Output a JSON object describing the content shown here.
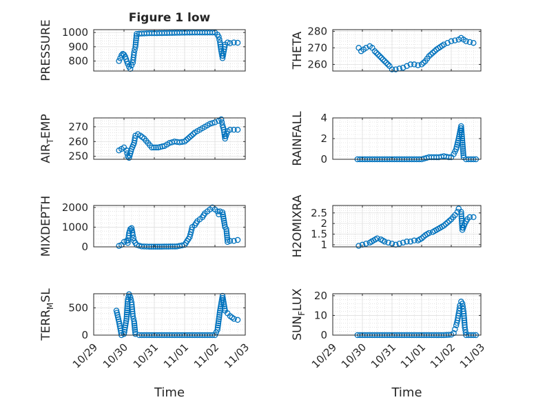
{
  "chart_data": [
    {
      "type": "scatter",
      "title": "Figure 1 low",
      "ylabel": "PRESSURE",
      "xlabel": "",
      "x_range": [
        "10/29",
        "11/03"
      ],
      "ylim": [
        730,
        1020
      ],
      "yticks": [
        800,
        900,
        1000
      ],
      "ytick_labels": [
        "800",
        "900",
        "1000"
      ],
      "xtick_labels": [],
      "points": [
        [
          "10/29 20:00",
          800
        ],
        [
          "10/29 21:00",
          820
        ],
        [
          "10/29 22:00",
          840
        ],
        [
          "10/29 23:00",
          850
        ],
        [
          "10/30 00:00",
          845
        ],
        [
          "10/30 01:00",
          830
        ],
        [
          "10/30 03:00",
          780
        ],
        [
          "10/30 04:00",
          760
        ],
        [
          "10/30 05:00",
          745
        ],
        [
          "10/30 06:00",
          770
        ],
        [
          "10/30 07:00",
          790
        ],
        [
          "10/30 08:00",
          860
        ],
        [
          "10/30 09:00",
          900
        ],
        [
          "10/30 10:00",
          990
        ],
        [
          "10/30 14:00",
          993
        ],
        [
          "10/30 20:00",
          995
        ],
        [
          "10/31 00:00",
          995
        ],
        [
          "10/31 06:00",
          996
        ],
        [
          "10/31 12:00",
          997
        ],
        [
          "10/31 18:00",
          998
        ],
        [
          "11/01 00:00",
          999
        ],
        [
          "11/01 06:00",
          1000
        ],
        [
          "11/01 12:00",
          1000
        ],
        [
          "11/01 18:00",
          1000
        ],
        [
          "11/02 00:00",
          1000
        ],
        [
          "11/02 02:00",
          985
        ],
        [
          "11/02 03:00",
          970
        ],
        [
          "11/02 04:00",
          930
        ],
        [
          "11/02 05:00",
          870
        ],
        [
          "11/02 06:00",
          820
        ],
        [
          "11/02 08:00",
          915
        ],
        [
          "11/02 10:00",
          930
        ],
        [
          "11/02 12:00",
          925
        ],
        [
          "11/02 15:00",
          930
        ],
        [
          "11/02 18:00",
          928
        ]
      ]
    },
    {
      "type": "scatter",
      "title": "",
      "ylabel": "THETA",
      "xlabel": "",
      "x_range": [
        "10/29",
        "11/03"
      ],
      "ylim": [
        256,
        281
      ],
      "yticks": [
        260,
        270,
        280
      ],
      "ytick_labels": [
        "260",
        "270",
        "280"
      ],
      "xtick_labels": [],
      "points": [
        [
          "10/29 21:00",
          270
        ],
        [
          "10/29 23:00",
          268
        ],
        [
          "10/30 01:00",
          269
        ],
        [
          "10/30 03:00",
          270
        ],
        [
          "10/30 06:00",
          271
        ],
        [
          "10/30 08:00",
          270
        ],
        [
          "10/30 10:00",
          268
        ],
        [
          "10/30 14:00",
          265
        ],
        [
          "10/30 18:00",
          262
        ],
        [
          "10/30 22:00",
          259
        ],
        [
          "10/31 00:00",
          257
        ],
        [
          "10/31 03:00",
          257
        ],
        [
          "10/31 06:00",
          257.5
        ],
        [
          "10/31 09:00",
          258
        ],
        [
          "10/31 12:00",
          259
        ],
        [
          "10/31 15:00",
          260
        ],
        [
          "10/31 18:00",
          260
        ],
        [
          "10/31 21:00",
          259.5
        ],
        [
          "11/01 00:00",
          260
        ],
        [
          "11/01 03:00",
          262
        ],
        [
          "11/01 06:00",
          265
        ],
        [
          "11/01 09:00",
          267
        ],
        [
          "11/01 12:00",
          269
        ],
        [
          "11/01 15:00",
          270.5
        ],
        [
          "11/01 18:00",
          272
        ],
        [
          "11/01 21:00",
          273
        ],
        [
          "11/02 00:00",
          274
        ],
        [
          "11/02 03:00",
          274.5
        ],
        [
          "11/02 06:00",
          275
        ],
        [
          "11/02 08:00",
          276
        ],
        [
          "11/02 10:00",
          275
        ],
        [
          "11/02 12:00",
          274
        ],
        [
          "11/02 15:00",
          273.5
        ],
        [
          "11/02 18:00",
          273
        ]
      ]
    },
    {
      "type": "scatter",
      "title": "",
      "ylabel": "AIR_TEMP",
      "xlabel": "",
      "x_range": [
        "10/29",
        "11/03"
      ],
      "ylim": [
        248,
        276
      ],
      "yticks": [
        250,
        260,
        270
      ],
      "ytick_labels": [
        "250",
        "260",
        "270"
      ],
      "xtick_labels": [],
      "points": [
        [
          "10/29 20:00",
          254
        ],
        [
          "10/29 22:00",
          255
        ],
        [
          "10/30 00:00",
          256
        ],
        [
          "10/30 02:00",
          254
        ],
        [
          "10/30 03:00",
          250
        ],
        [
          "10/30 04:00",
          249
        ],
        [
          "10/30 05:00",
          252
        ],
        [
          "10/30 06:00",
          255
        ],
        [
          "10/30 08:00",
          259
        ],
        [
          "10/30 09:00",
          264
        ],
        [
          "10/30 11:00",
          265
        ],
        [
          "10/30 13:00",
          264
        ],
        [
          "10/30 16:00",
          262
        ],
        [
          "10/30 19:00",
          259
        ],
        [
          "10/30 22:00",
          256
        ],
        [
          "10/31 03:00",
          256
        ],
        [
          "10/31 08:00",
          257
        ],
        [
          "10/31 12:00",
          259
        ],
        [
          "10/31 16:00",
          260
        ],
        [
          "10/31 20:00",
          259.5
        ],
        [
          "11/01 00:00",
          260
        ],
        [
          "11/01 04:00",
          263
        ],
        [
          "11/01 08:00",
          266
        ],
        [
          "11/01 12:00",
          268
        ],
        [
          "11/01 16:00",
          270
        ],
        [
          "11/01 20:00",
          272
        ],
        [
          "11/02 00:00",
          273
        ],
        [
          "11/02 03:00",
          274
        ],
        [
          "11/02 05:00",
          275
        ],
        [
          "11/02 06:00",
          271
        ],
        [
          "11/02 07:00",
          268
        ],
        [
          "11/02 08:00",
          262
        ],
        [
          "11/02 10:00",
          267
        ],
        [
          "11/02 12:00",
          268
        ],
        [
          "11/02 15:00",
          268
        ],
        [
          "11/02 18:00",
          268
        ]
      ]
    },
    {
      "type": "scatter",
      "title": "",
      "ylabel": "RAINFALL",
      "xlabel": "",
      "x_range": [
        "10/29",
        "11/03"
      ],
      "ylim": [
        0,
        4
      ],
      "yticks": [
        0,
        2,
        4
      ],
      "ytick_labels": [
        "0",
        "2",
        "4"
      ],
      "xtick_labels": [],
      "points": [
        [
          "10/29 20:00",
          0
        ],
        [
          "10/30 00:00",
          0
        ],
        [
          "10/30 06:00",
          0
        ],
        [
          "10/30 12:00",
          0
        ],
        [
          "10/30 18:00",
          0
        ],
        [
          "10/31 00:00",
          0
        ],
        [
          "10/31 06:00",
          0
        ],
        [
          "10/31 12:00",
          0
        ],
        [
          "10/31 18:00",
          0
        ],
        [
          "11/01 00:00",
          0
        ],
        [
          "11/01 06:00",
          0.2
        ],
        [
          "11/01 10:00",
          0.2
        ],
        [
          "11/01 14:00",
          0.2
        ],
        [
          "11/01 18:00",
          0.3
        ],
        [
          "11/01 22:00",
          0.2
        ],
        [
          "11/02 00:00",
          0.2
        ],
        [
          "11/02 02:00",
          0.5
        ],
        [
          "11/02 04:00",
          1.0
        ],
        [
          "11/02 06:00",
          2.0
        ],
        [
          "11/02 08:00",
          3.2
        ],
        [
          "11/02 10:00",
          0.2
        ],
        [
          "11/02 12:00",
          0
        ],
        [
          "11/02 16:00",
          0
        ],
        [
          "11/02 20:00",
          0
        ]
      ]
    },
    {
      "type": "scatter",
      "title": "",
      "ylabel": "MIXDEPTH",
      "xlabel": "",
      "x_range": [
        "10/29",
        "11/03"
      ],
      "ylim": [
        0,
        2100
      ],
      "yticks": [
        0,
        1000,
        2000
      ],
      "ytick_labels": [
        "0",
        "1000",
        "2000"
      ],
      "xtick_labels": [],
      "points": [
        [
          "10/29 20:00",
          50
        ],
        [
          "10/29 22:00",
          100
        ],
        [
          "10/30 00:00",
          250
        ],
        [
          "10/30 02:00",
          300
        ],
        [
          "10/30 03:00",
          200
        ],
        [
          "10/30 04:00",
          700
        ],
        [
          "10/30 05:00",
          900
        ],
        [
          "10/30 06:00",
          950
        ],
        [
          "10/30 07:00",
          600
        ],
        [
          "10/30 08:00",
          300
        ],
        [
          "10/30 10:00",
          100
        ],
        [
          "10/30 14:00",
          20
        ],
        [
          "10/30 20:00",
          10
        ],
        [
          "10/31 06:00",
          10
        ],
        [
          "10/31 18:00",
          20
        ],
        [
          "11/01 00:00",
          100
        ],
        [
          "11/01 02:00",
          300
        ],
        [
          "11/01 04:00",
          500
        ],
        [
          "11/01 06:00",
          1000
        ],
        [
          "11/01 08:00",
          1100
        ],
        [
          "11/01 10:00",
          1300
        ],
        [
          "11/01 12:00",
          1400
        ],
        [
          "11/01 14:00",
          1500
        ],
        [
          "11/01 16:00",
          1700
        ],
        [
          "11/01 18:00",
          1800
        ],
        [
          "11/01 20:00",
          1900
        ],
        [
          "11/01 22:00",
          2000
        ],
        [
          "11/02 00:00",
          1900
        ],
        [
          "11/02 02:00",
          1800
        ],
        [
          "11/02 03:00",
          1650
        ],
        [
          "11/02 04:00",
          1800
        ],
        [
          "11/02 06:00",
          1750
        ],
        [
          "11/02 08:00",
          1000
        ],
        [
          "11/02 09:00",
          900
        ],
        [
          "11/02 10:00",
          250
        ],
        [
          "11/02 12:00",
          300
        ],
        [
          "11/02 15:00",
          300
        ],
        [
          "11/02 18:00",
          350
        ]
      ]
    },
    {
      "type": "scatter",
      "title": "",
      "ylabel": "H2OMIXRA",
      "xlabel": "",
      "x_range": [
        "10/29",
        "11/03"
      ],
      "ylim": [
        0.9,
        2.85
      ],
      "yticks": [
        1,
        1.5,
        2,
        2.5
      ],
      "ytick_labels": [
        "1",
        "1.5",
        "2",
        "2.5"
      ],
      "xtick_labels": [],
      "points": [
        [
          "10/29 21:00",
          0.95
        ],
        [
          "10/30 00:00",
          1.0
        ],
        [
          "10/30 03:00",
          1.05
        ],
        [
          "10/30 06:00",
          1.1
        ],
        [
          "10/30 09:00",
          1.2
        ],
        [
          "10/30 12:00",
          1.3
        ],
        [
          "10/30 15:00",
          1.25
        ],
        [
          "10/30 18:00",
          1.15
        ],
        [
          "10/30 21:00",
          1.1
        ],
        [
          "10/31 00:00",
          1.05
        ],
        [
          "10/31 03:00",
          1.0
        ],
        [
          "10/31 06:00",
          1.05
        ],
        [
          "10/31 09:00",
          1.1
        ],
        [
          "10/31 12:00",
          1.15
        ],
        [
          "10/31 15:00",
          1.15
        ],
        [
          "10/31 18:00",
          1.2
        ],
        [
          "10/31 21:00",
          1.2
        ],
        [
          "11/01 00:00",
          1.3
        ],
        [
          "11/01 03:00",
          1.45
        ],
        [
          "11/01 06:00",
          1.55
        ],
        [
          "11/01 09:00",
          1.6
        ],
        [
          "11/01 12:00",
          1.7
        ],
        [
          "11/01 15:00",
          1.8
        ],
        [
          "11/01 18:00",
          1.9
        ],
        [
          "11/01 21:00",
          2.05
        ],
        [
          "11/02 00:00",
          2.2
        ],
        [
          "11/02 03:00",
          2.4
        ],
        [
          "11/02 05:00",
          2.55
        ],
        [
          "11/02 06:00",
          2.7
        ],
        [
          "11/02 08:00",
          2.55
        ],
        [
          "11/02 09:00",
          1.7
        ],
        [
          "11/02 11:00",
          2.0
        ],
        [
          "11/02 13:00",
          2.2
        ],
        [
          "11/02 15:00",
          2.3
        ],
        [
          "11/02 18:00",
          2.3
        ]
      ]
    },
    {
      "type": "scatter",
      "title": "",
      "ylabel": "TERR_MSL",
      "xlabel": "Time",
      "x_range": [
        "10/29",
        "11/03"
      ],
      "ylim": [
        0,
        760
      ],
      "yticks": [
        0,
        500
      ],
      "ytick_labels": [
        "0",
        "500"
      ],
      "xtick_labels": [
        "10/29",
        "10/30",
        "10/31",
        "11/01",
        "11/02",
        "11/03"
      ],
      "points": [
        [
          "10/29 18:00",
          450
        ],
        [
          "10/29 20:00",
          250
        ],
        [
          "10/29 22:00",
          0
        ],
        [
          "10/30 00:00",
          20
        ],
        [
          "10/30 02:00",
          300
        ],
        [
          "10/30 03:00",
          650
        ],
        [
          "10/30 04:00",
          750
        ],
        [
          "10/30 05:00",
          700
        ],
        [
          "10/30 06:00",
          600
        ],
        [
          "10/30 07:00",
          350
        ],
        [
          "10/30 08:00",
          250
        ],
        [
          "10/30 09:00",
          20
        ],
        [
          "10/30 12:00",
          0
        ],
        [
          "10/30 18:00",
          0
        ],
        [
          "10/31 00:00",
          0
        ],
        [
          "10/31 06:00",
          0
        ],
        [
          "10/31 12:00",
          0
        ],
        [
          "10/31 18:00",
          0
        ],
        [
          "11/01 00:00",
          0
        ],
        [
          "11/01 06:00",
          0
        ],
        [
          "11/01 12:00",
          0
        ],
        [
          "11/01 18:00",
          0
        ],
        [
          "11/02 00:00",
          0
        ],
        [
          "11/02 02:00",
          100
        ],
        [
          "11/02 04:00",
          450
        ],
        [
          "11/02 06:00",
          720
        ],
        [
          "11/02 08:00",
          450
        ],
        [
          "11/02 10:00",
          400
        ],
        [
          "11/02 12:00",
          350
        ],
        [
          "11/02 15:00",
          300
        ],
        [
          "11/02 18:00",
          280
        ]
      ]
    },
    {
      "type": "scatter",
      "title": "",
      "ylabel": "SUN_FLUX",
      "xlabel": "Time",
      "x_range": [
        "10/29",
        "11/03"
      ],
      "ylim": [
        0,
        21
      ],
      "yticks": [
        0,
        10,
        20
      ],
      "ytick_labels": [
        "0",
        "10",
        "20"
      ],
      "xtick_labels": [
        "10/29",
        "10/30",
        "10/31",
        "11/01",
        "11/02",
        "11/03"
      ],
      "points": [
        [
          "10/29 20:00",
          0
        ],
        [
          "10/30 00:00",
          0
        ],
        [
          "10/30 06:00",
          0
        ],
        [
          "10/30 12:00",
          0
        ],
        [
          "10/30 18:00",
          0
        ],
        [
          "10/31 00:00",
          0
        ],
        [
          "10/31 06:00",
          0
        ],
        [
          "10/31 12:00",
          0
        ],
        [
          "10/31 18:00",
          0
        ],
        [
          "11/01 00:00",
          0
        ],
        [
          "11/01 06:00",
          0
        ],
        [
          "11/01 12:00",
          0
        ],
        [
          "11/01 18:00",
          0
        ],
        [
          "11/02 00:00",
          0.2
        ],
        [
          "11/02 02:00",
          1
        ],
        [
          "11/02 03:00",
          3
        ],
        [
          "11/02 04:00",
          5
        ],
        [
          "11/02 05:00",
          7.5
        ],
        [
          "11/02 06:00",
          11
        ],
        [
          "11/02 07:00",
          15
        ],
        [
          "11/02 08:00",
          17
        ],
        [
          "11/02 09:00",
          16
        ],
        [
          "11/02 10:00",
          12
        ],
        [
          "11/02 11:00",
          4
        ],
        [
          "11/02 12:00",
          0
        ],
        [
          "11/02 16:00",
          0
        ],
        [
          "11/02 20:00",
          0
        ]
      ]
    }
  ]
}
